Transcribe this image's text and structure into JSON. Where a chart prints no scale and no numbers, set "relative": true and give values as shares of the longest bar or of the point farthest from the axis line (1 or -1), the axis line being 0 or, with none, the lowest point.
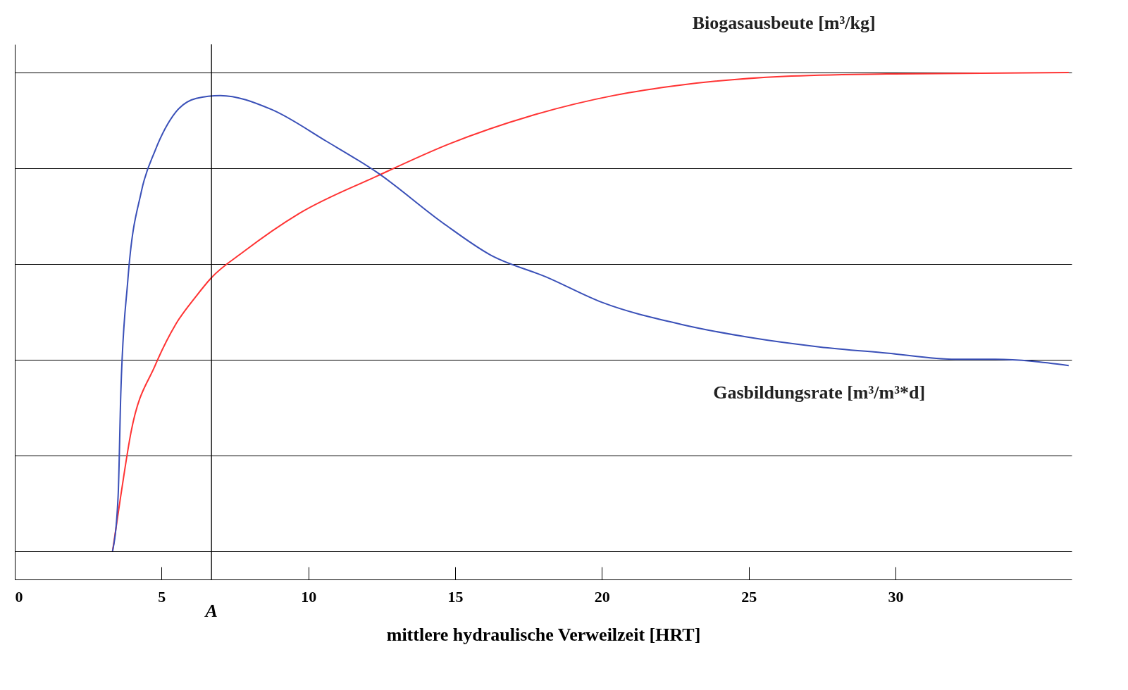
{
  "chart_data": {
    "type": "line",
    "relative": true,
    "xlabel": "mittlere hydraulische Verweilzeit [HRT]",
    "xlim": [
      0,
      36
    ],
    "xticks": [
      0,
      5,
      10,
      15,
      20,
      25,
      30
    ],
    "grid": "y",
    "legend": false,
    "ref_lines": [
      {
        "axis": "x",
        "value": 6.7,
        "label": "A",
        "color": "#000000"
      }
    ],
    "series": [
      {
        "name": "Biogasausbeute [m³/kg]",
        "color": "#ff3333",
        "x": [
          3.33,
          3.61,
          3.96,
          4.78,
          5.48,
          6.18,
          6.69,
          7.8,
          9.67,
          12.35,
          14.8,
          17.6,
          20.4,
          22.7,
          26.2,
          29.7,
          35.9
        ],
        "values": [
          0,
          0.116,
          0.249,
          0.388,
          0.474,
          0.533,
          0.571,
          0.626,
          0.705,
          0.784,
          0.851,
          0.91,
          0.952,
          0.974,
          0.992,
          0.997,
          1.0
        ]
      },
      {
        "name": "Gasbildungsrate [m³/m³*d]",
        "color": "#3a50b8",
        "x": [
          3.33,
          3.52,
          3.61,
          3.85,
          4.31,
          4.78,
          5.48,
          6.18,
          7.0,
          8.74,
          10.6,
          12.35,
          14.6,
          16.2,
          18.1,
          20.0,
          22.7,
          25.0,
          27.4,
          29.7,
          32.05,
          33.4,
          35.9
        ],
        "values": [
          0,
          0.116,
          0.328,
          0.566,
          0.751,
          0.837,
          0.917,
          0.946,
          0.952,
          0.923,
          0.857,
          0.791,
          0.685,
          0.619,
          0.573,
          0.52,
          0.474,
          0.447,
          0.427,
          0.414,
          0.401,
          0.401,
          0.388
        ]
      }
    ]
  }
}
